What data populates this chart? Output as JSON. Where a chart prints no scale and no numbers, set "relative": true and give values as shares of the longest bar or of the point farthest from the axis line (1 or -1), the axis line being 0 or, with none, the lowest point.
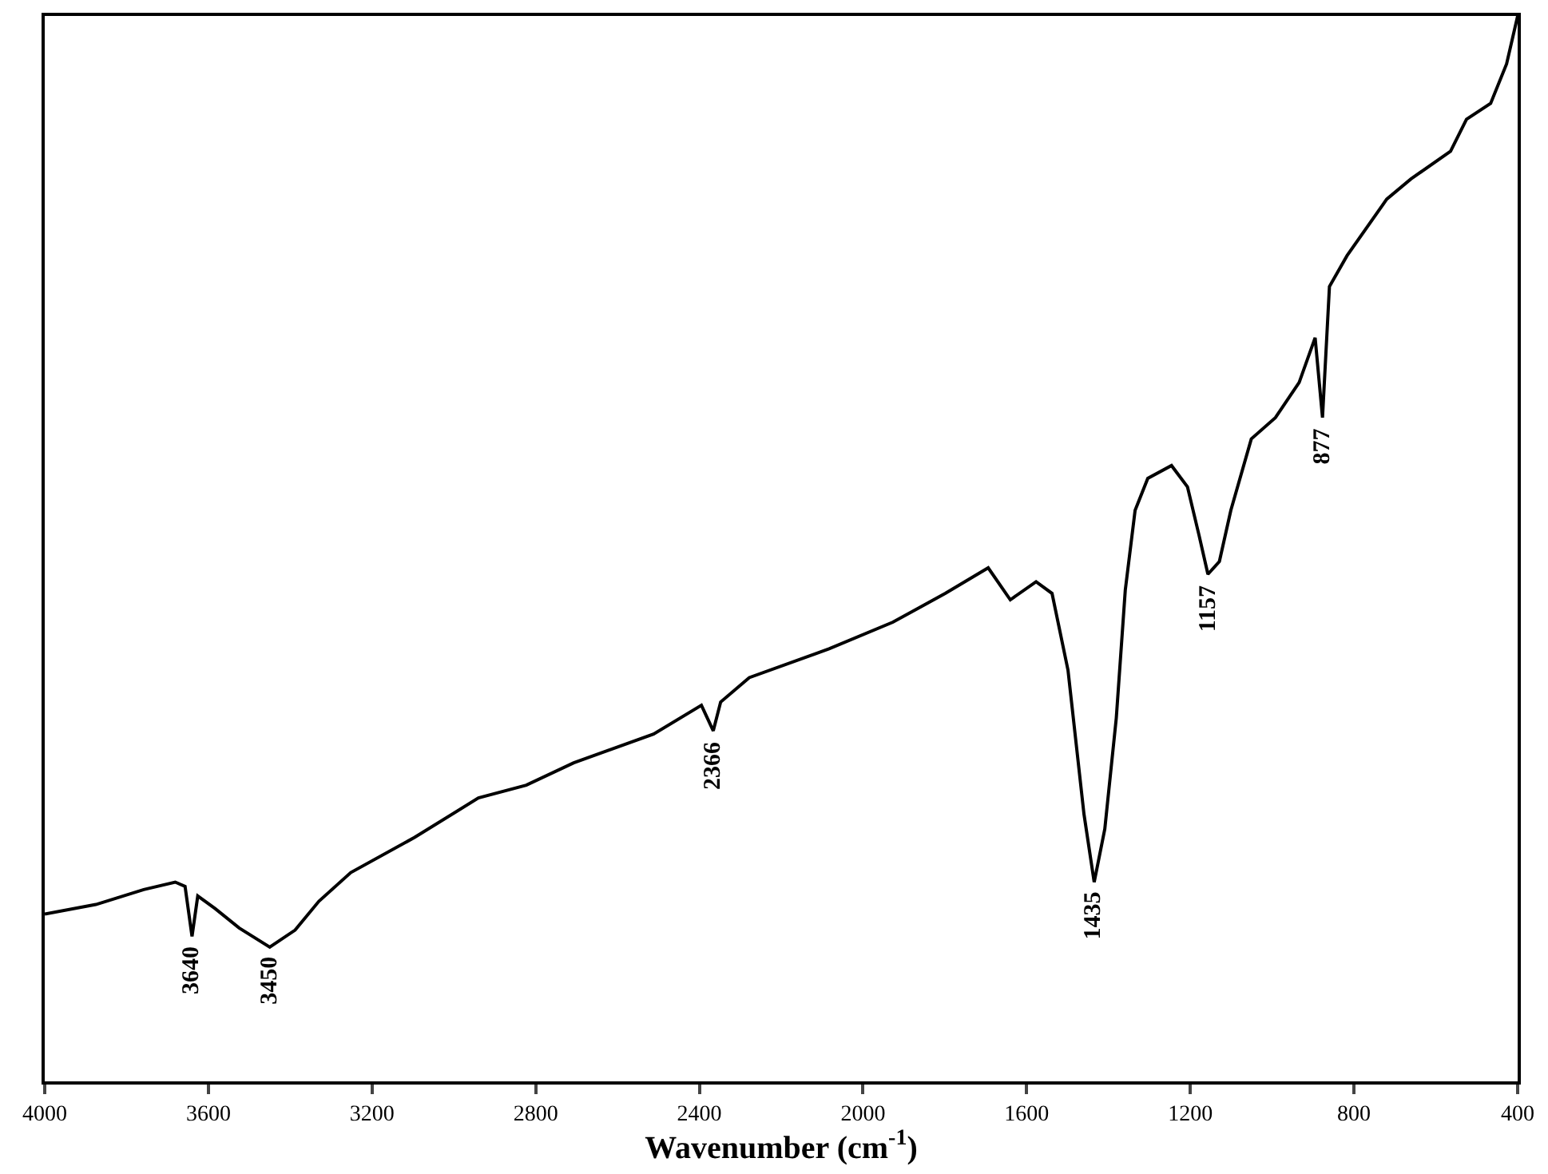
{
  "chart_data": {
    "type": "line",
    "relative": true,
    "xlabel": "Wavenumber (cm$^{-1}$)",
    "xlim": [
      4000,
      400
    ],
    "xticks": [
      4000,
      3600,
      3200,
      2800,
      2400,
      2000,
      1600,
      1200,
      800,
      400
    ],
    "tick_labels": "x",
    "marker": "none",
    "line_style": "solid",
    "x": [
      4000,
      3875,
      3758,
      3681,
      3657,
      3640,
      3626,
      3583,
      3525,
      3450,
      3388,
      3330,
      3252,
      3096,
      2940,
      2823,
      2707,
      2512,
      2395,
      2366,
      2348,
      2278,
      2083,
      1927,
      1799,
      1694,
      1640,
      1577,
      1538,
      1499,
      1460,
      1435,
      1409,
      1381,
      1359,
      1335,
      1304,
      1246,
      1207,
      1179,
      1157,
      1129,
      1101,
      1051,
      992,
      934,
      895,
      877,
      860,
      817,
      720,
      661,
      564,
      525,
      466,
      427,
      400
    ],
    "series": [
      {
        "color": "#000000",
        "values": [
          0.157,
          0.166,
          0.18,
          0.187,
          0.183,
          0.136,
          0.174,
          0.162,
          0.144,
          0.126,
          0.142,
          0.169,
          0.196,
          0.229,
          0.266,
          0.278,
          0.299,
          0.326,
          0.353,
          0.329,
          0.356,
          0.379,
          0.406,
          0.431,
          0.458,
          0.482,
          0.452,
          0.469,
          0.458,
          0.386,
          0.251,
          0.187,
          0.237,
          0.341,
          0.461,
          0.536,
          0.566,
          0.578,
          0.558,
          0.513,
          0.476,
          0.488,
          0.536,
          0.603,
          0.623,
          0.656,
          0.698,
          0.623,
          0.746,
          0.775,
          0.828,
          0.847,
          0.873,
          0.903,
          0.918,
          0.955,
          1.0
        ]
      }
    ],
    "annotations": [
      {
        "text": "3640",
        "x": 3640,
        "y": 0.136
      },
      {
        "text": "3450",
        "x": 3450,
        "y": 0.126
      },
      {
        "text": "2366",
        "x": 2366,
        "y": 0.329
      },
      {
        "text": "1435",
        "x": 1435,
        "y": 0.187
      },
      {
        "text": "1157",
        "x": 1157,
        "y": 0.476
      },
      {
        "text": "877",
        "x": 877,
        "y": 0.623
      }
    ]
  }
}
